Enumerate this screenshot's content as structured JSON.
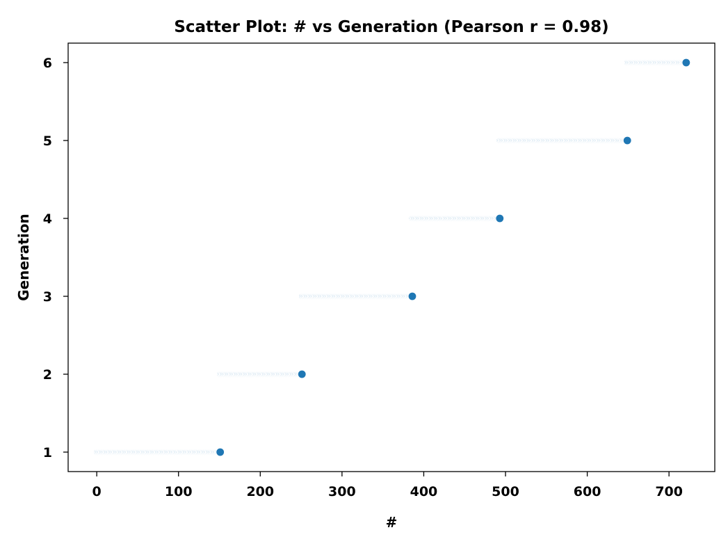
{
  "chart_data": {
    "type": "scatter",
    "title": "Scatter Plot: # vs Generation (Pearson r = 0.98)",
    "xlabel": "#",
    "ylabel": "Generation",
    "xlim": [
      -35,
      756
    ],
    "ylim": [
      0.75,
      6.25
    ],
    "x_ticks": [
      0,
      100,
      200,
      300,
      400,
      500,
      600,
      700
    ],
    "y_ticks": [
      1,
      2,
      3,
      4,
      5,
      6
    ],
    "grid": false,
    "legend": "none",
    "marker_color": "#1f77b4",
    "edge_color": "#ffffff",
    "series": [
      {
        "generations": [
          {
            "generation": 1,
            "x_start": 1,
            "x_end": 151
          },
          {
            "generation": 2,
            "x_start": 152,
            "x_end": 251
          },
          {
            "generation": 3,
            "x_start": 252,
            "x_end": 386
          },
          {
            "generation": 4,
            "x_start": 387,
            "x_end": 493
          },
          {
            "generation": 5,
            "x_start": 494,
            "x_end": 649
          },
          {
            "generation": 6,
            "x_start": 650,
            "x_end": 721
          }
        ]
      }
    ]
  }
}
